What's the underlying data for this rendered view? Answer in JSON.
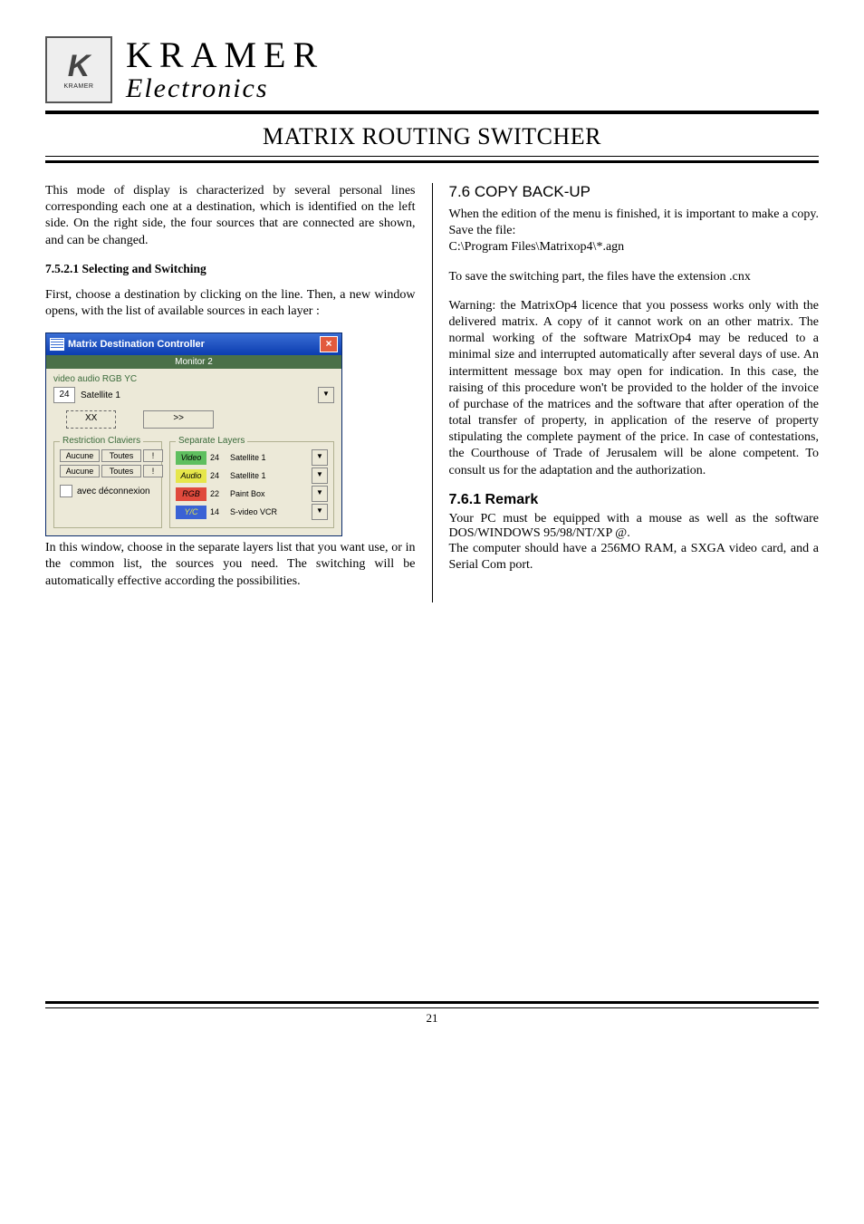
{
  "brand": {
    "main": "KRAMER",
    "sub": "Electronics",
    "logo_label": "KRAMER"
  },
  "mainTitle": "MATRIX ROUTING SWITCHER",
  "left": {
    "p1": "This mode of display is characterized by several personal lines corresponding each one at a destination, which is identified on the left side. On the right side, the four sources that are connected are shown, and can be changed.",
    "s7521": "7.5.2.1 Selecting and Switching",
    "p2": "First, choose a destination by clicking on the line. Then, a new window opens, with the list of available sources in each layer :",
    "p3": "In this window, choose in the separate layers list that you want use, or in the common list, the sources you need. The switching will be automatically effective according the possibilities."
  },
  "right": {
    "h76": "7.6 COPY BACK-UP",
    "p1": "When the edition of the menu is finished, it is important to make a copy. Save the file:",
    "path": "C:\\Program Files\\Matrixop4\\*.agn",
    "p2": "To save the switching part, the files have the extension .cnx",
    "p3": "Warning: the MatrixOp4 licence that you possess works only with the delivered matrix.  A copy of it cannot work on an other matrix. The normal working of the software MatrixOp4 may be reduced to a minimal size and interrupted automatically after several days of use. An intermittent message box may open for indication. In this case, the raising of this procedure won't be provided to the holder of the invoice of purchase of the matrices and the software that after operation of the total transfer of property, in application of the reserve of property stipulating the complete payment of the price. In case of contestations, the Courthouse of Trade of Jerusalem will be alone competent. To consult us for the adaptation and the authorization.",
    "h761": "7.6.1  Remark",
    "p4": "Your PC must be equipped with a mouse as well as the software DOS/WINDOWS 95/98/NT/XP @.",
    "p5": "The computer should have a 256MO RAM, a SXGA video card, and a Serial Com port."
  },
  "dialog": {
    "title": "Matrix Destination Controller",
    "monitor": "Monitor 2",
    "vaLabel": "video audio RGB YC",
    "srcNum": "24",
    "srcName": "Satellite 1",
    "xxBtn": "XX",
    "fwdBtn": ">>",
    "restrictionTitle": "Restriction Claviers",
    "separateTitle": "Separate Layers",
    "rc": {
      "aucune": "Aucune",
      "toutes": "Toutes",
      "excl": "!"
    },
    "avecDecon": "avec déconnexion",
    "rows": [
      {
        "tag": "Video",
        "num": "24",
        "name": "Satellite 1",
        "colorClass": "tag-video"
      },
      {
        "tag": "Audio",
        "num": "24",
        "name": "Satellite 1",
        "colorClass": "tag-audio"
      },
      {
        "tag": "RGB",
        "num": "22",
        "name": "Paint Box",
        "colorClass": "tag-rgb"
      },
      {
        "tag": "Y/C",
        "num": "14",
        "name": "S-video VCR",
        "colorClass": "tag-yc"
      }
    ]
  },
  "pageNumber": "21",
  "colors": {
    "titlebar_start": "#3a6ed5",
    "titlebar_end": "#0b3db0",
    "win_bg": "#ece9d8",
    "monitor_bar": "#4a7048",
    "video": "#5fbf5f",
    "audio": "#e6e64a",
    "rgb": "#e04a3d",
    "yc": "#3a62d5"
  }
}
